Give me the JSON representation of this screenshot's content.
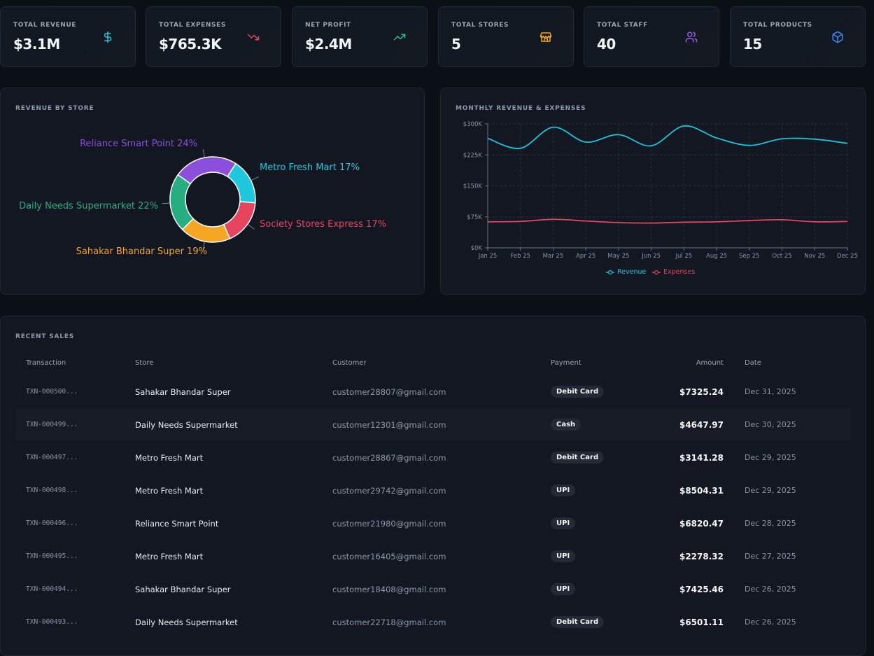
{
  "kpis": [
    {
      "label": "TOTAL REVENUE",
      "value": "$3.1M",
      "icon": "dollar-icon",
      "color": "#22c3d6"
    },
    {
      "label": "TOTAL EXPENSES",
      "value": "$765.3K",
      "icon": "trending-down-icon",
      "color": "#e8465d"
    },
    {
      "label": "NET PROFIT",
      "value": "$2.4M",
      "icon": "trending-up-icon",
      "color": "#2bbf8a"
    },
    {
      "label": "TOTAL STORES",
      "value": "5",
      "icon": "store-icon",
      "color": "#f5a623"
    },
    {
      "label": "TOTAL STAFF",
      "value": "40",
      "icon": "users-icon",
      "color": "#9b5de5"
    },
    {
      "label": "TOTAL PRODUCTS",
      "value": "15",
      "icon": "box-icon",
      "color": "#3b8cf0"
    }
  ],
  "pie_panel": {
    "title": "REVENUE BY STORE"
  },
  "line_panel": {
    "title": "MONTHLY REVENUE & EXPENSES"
  },
  "chart_data": [
    {
      "type": "pie",
      "donut": true,
      "slices": [
        {
          "label": "Metro Fresh Mart",
          "percent": 17,
          "color": "#1fc8dc"
        },
        {
          "label": "Society Stores Express",
          "percent": 17,
          "color": "#e5455e"
        },
        {
          "label": "Sahakar Bhandar Super",
          "percent": 19,
          "color": "#f5a623"
        },
        {
          "label": "Daily Needs Supermarket",
          "percent": 22,
          "color": "#27ae80"
        },
        {
          "label": "Reliance Smart Point",
          "percent": 24,
          "color": "#8b4fdc"
        }
      ],
      "label_suffix": "%"
    },
    {
      "type": "line",
      "x": [
        "Jan 25",
        "Feb 25",
        "Mar 25",
        "Apr 25",
        "May 25",
        "Jun 25",
        "Jul 25",
        "Aug 25",
        "Sep 25",
        "Oct 25",
        "Nov 25",
        "Dec 25"
      ],
      "series": [
        {
          "name": "Revenue",
          "color": "#1fc3d8",
          "values": [
            265000,
            241000,
            292000,
            256000,
            274000,
            247000,
            295000,
            266000,
            248000,
            264000,
            263000,
            253000
          ]
        },
        {
          "name": "Expenses",
          "color": "#e0455b",
          "values": [
            63000,
            64000,
            69000,
            65000,
            61000,
            60000,
            62000,
            63000,
            66000,
            68000,
            63000,
            64000
          ]
        }
      ],
      "ylim": [
        0,
        300000
      ],
      "yticks": [
        0,
        75000,
        150000,
        225000,
        300000
      ],
      "ytick_labels": [
        "$0K",
        "$75K",
        "$150K",
        "$225K",
        "$300K"
      ],
      "grid": true,
      "legend": "bottom-center"
    }
  ],
  "sales": {
    "title": "RECENT SALES",
    "headers": {
      "txn": "Transaction",
      "store": "Store",
      "customer": "Customer",
      "payment": "Payment",
      "amount": "Amount",
      "date": "Date"
    },
    "rows": [
      {
        "txn": "TXN-000500...",
        "store": "Sahakar Bhandar Super",
        "customer": "customer28807@gmail.com",
        "payment": "Debit Card",
        "amount": "$7325.24",
        "date": "Dec 31, 2025"
      },
      {
        "txn": "TXN-000499...",
        "store": "Daily Needs Supermarket",
        "customer": "customer12301@gmail.com",
        "payment": "Cash",
        "amount": "$4647.97",
        "date": "Dec 30, 2025"
      },
      {
        "txn": "TXN-000497...",
        "store": "Metro Fresh Mart",
        "customer": "customer28867@gmail.com",
        "payment": "Debit Card",
        "amount": "$3141.28",
        "date": "Dec 29, 2025"
      },
      {
        "txn": "TXN-000498...",
        "store": "Metro Fresh Mart",
        "customer": "customer29742@gmail.com",
        "payment": "UPI",
        "amount": "$8504.31",
        "date": "Dec 29, 2025"
      },
      {
        "txn": "TXN-000496...",
        "store": "Reliance Smart Point",
        "customer": "customer21980@gmail.com",
        "payment": "UPI",
        "amount": "$6820.47",
        "date": "Dec 28, 2025"
      },
      {
        "txn": "TXN-000495...",
        "store": "Metro Fresh Mart",
        "customer": "customer16405@gmail.com",
        "payment": "UPI",
        "amount": "$2278.32",
        "date": "Dec 27, 2025"
      },
      {
        "txn": "TXN-000494...",
        "store": "Sahakar Bhandar Super",
        "customer": "customer18408@gmail.com",
        "payment": "UPI",
        "amount": "$7425.46",
        "date": "Dec 26, 2025"
      },
      {
        "txn": "TXN-000493...",
        "store": "Daily Needs Supermarket",
        "customer": "customer22718@gmail.com",
        "payment": "Debit Card",
        "amount": "$6501.11",
        "date": "Dec 26, 2025"
      }
    ]
  }
}
